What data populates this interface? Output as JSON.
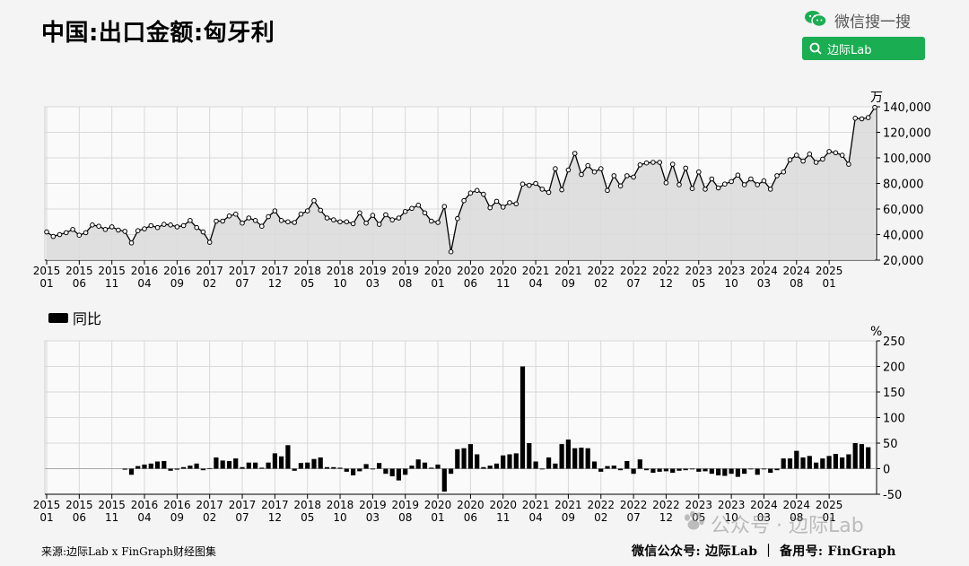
{
  "header": {
    "title": "中国:出口金额:匈牙利",
    "search_brand": "微信搜一搜",
    "search_query": "边际Lab"
  },
  "footer": {
    "source": "来源:边际Lab x FinGraph财经图集",
    "right": "微信公众号: 边际Lab ｜ 备用号: FinGraph"
  },
  "watermark": "公众号 · 边际Lab",
  "colors": {
    "bar": "#000000",
    "line": "#000000",
    "area": "#dcdcdc",
    "grid": "#cccccc",
    "brand": "#1aad52"
  },
  "chart_data": [
    {
      "type": "area",
      "unit": "万",
      "ylim": [
        20000,
        140000
      ],
      "yticks": [
        20000,
        40000,
        60000,
        80000,
        100000,
        120000,
        140000
      ],
      "ytick_labels": [
        "20,000",
        "40,000",
        "60,000",
        "80,000",
        "100,000",
        "120,000",
        "140,000"
      ],
      "x_tick_labels": [
        [
          "2015",
          "01"
        ],
        [
          "2015",
          "06"
        ],
        [
          "2015",
          "11"
        ],
        [
          "2016",
          "04"
        ],
        [
          "2016",
          "09"
        ],
        [
          "2017",
          "02"
        ],
        [
          "2017",
          "07"
        ],
        [
          "2017",
          "12"
        ],
        [
          "2018",
          "05"
        ],
        [
          "2018",
          "10"
        ],
        [
          "2019",
          "03"
        ],
        [
          "2019",
          "08"
        ],
        [
          "2020",
          "01"
        ],
        [
          "2020",
          "06"
        ],
        [
          "2020",
          "11"
        ],
        [
          "2021",
          "04"
        ],
        [
          "2021",
          "09"
        ],
        [
          "2022",
          "02"
        ],
        [
          "2022",
          "07"
        ],
        [
          "2022",
          "12"
        ],
        [
          "2023",
          "05"
        ],
        [
          "2023",
          "10"
        ],
        [
          "2024",
          "03"
        ],
        [
          "2024",
          "08"
        ],
        [
          "2025",
          "01"
        ]
      ],
      "start": "2015-01",
      "values": [
        42000,
        38500,
        40000,
        41500,
        44000,
        39500,
        41500,
        47500,
        46500,
        44000,
        46000,
        43500,
        42500,
        33500,
        43000,
        44500,
        47000,
        45500,
        48000,
        47500,
        46000,
        47000,
        51000,
        45500,
        42000,
        34000,
        50500,
        50500,
        54500,
        56000,
        49000,
        53000,
        51000,
        46500,
        54000,
        58500,
        51000,
        50000,
        49500,
        56000,
        58500,
        66500,
        59000,
        53000,
        51500,
        50000,
        50000,
        48500,
        57000,
        49000,
        55000,
        48000,
        55500,
        51500,
        53000,
        58000,
        60500,
        63000,
        57000,
        50500,
        49500,
        62000,
        26500,
        52500,
        66500,
        72500,
        74500,
        71500,
        61000,
        66000,
        61500,
        65000,
        64000,
        79500,
        78500,
        80000,
        75500,
        73000,
        91500,
        75000,
        90500,
        103500,
        87000,
        94000,
        89000,
        91500,
        74500,
        86000,
        78000,
        86000,
        85000,
        94500,
        96000,
        96500,
        96500,
        80500,
        95000,
        79000,
        92000,
        76000,
        89000,
        75500,
        83500,
        76500,
        79500,
        81500,
        86500,
        79000,
        83500,
        79000,
        82000,
        75500,
        86000,
        89000,
        98500,
        102000,
        97500,
        103000,
        96500,
        99000,
        105000,
        104000,
        102000,
        95000,
        131000,
        130500,
        131500,
        139500
      ]
    },
    {
      "type": "bar",
      "series": [
        {
          "name": "同比"
        }
      ],
      "unit": "%",
      "ylim": [
        -50,
        250
      ],
      "yticks": [
        -50,
        0,
        50,
        100,
        150,
        200,
        250
      ],
      "x_tick_labels": [
        [
          "2015",
          "01"
        ],
        [
          "2015",
          "06"
        ],
        [
          "2015",
          "11"
        ],
        [
          "2016",
          "04"
        ],
        [
          "2016",
          "09"
        ],
        [
          "2017",
          "02"
        ],
        [
          "2017",
          "07"
        ],
        [
          "2017",
          "12"
        ],
        [
          "2018",
          "05"
        ],
        [
          "2018",
          "10"
        ],
        [
          "2019",
          "03"
        ],
        [
          "2019",
          "08"
        ],
        [
          "2020",
          "01"
        ],
        [
          "2020",
          "06"
        ],
        [
          "2020",
          "11"
        ],
        [
          "2021",
          "04"
        ],
        [
          "2021",
          "09"
        ],
        [
          "2022",
          "02"
        ],
        [
          "2022",
          "07"
        ],
        [
          "2022",
          "12"
        ],
        [
          "2023",
          "05"
        ],
        [
          "2023",
          "10"
        ],
        [
          "2024",
          "03"
        ],
        [
          "2024",
          "08"
        ],
        [
          "2025",
          "01"
        ]
      ],
      "start": "2016-01",
      "values": [
        -2,
        -12,
        5,
        8,
        10,
        14,
        15,
        -4,
        -2,
        3,
        6,
        10,
        -3,
        1,
        22,
        16,
        15,
        20,
        3,
        12,
        12,
        2,
        12,
        30,
        24,
        46,
        -4,
        11,
        12,
        19,
        22,
        3,
        3,
        2,
        -6,
        -13,
        -5,
        9,
        -1,
        11,
        -10,
        -15,
        -23,
        -12,
        6,
        18,
        12,
        2,
        8,
        -45,
        -10,
        38,
        40,
        48,
        28,
        3,
        6,
        10,
        26,
        28,
        30,
        200,
        50,
        14,
        0,
        22,
        10,
        48,
        57,
        40,
        41,
        40,
        14,
        -6,
        5,
        6,
        -3,
        15,
        -10,
        18,
        -3,
        -8,
        -6,
        -5,
        -8,
        -4,
        -3,
        0,
        -6,
        -5,
        -10,
        -13,
        -14,
        -10,
        -16,
        -10,
        0,
        -12,
        0,
        -8,
        -3,
        20,
        20,
        35,
        22,
        25,
        12,
        20,
        25,
        29,
        22,
        28,
        50,
        48,
        42
      ]
    }
  ]
}
